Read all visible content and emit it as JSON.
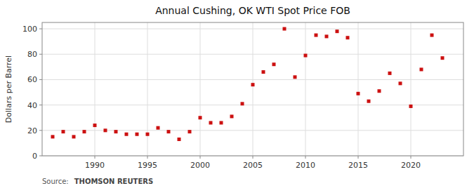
{
  "chart_data": {
    "type": "scatter",
    "title": "Annual Cushing, OK WTI Spot Price FOB",
    "ylabel": "Dollars per Barrel",
    "x": [
      1986,
      1987,
      1988,
      1989,
      1990,
      1991,
      1992,
      1993,
      1994,
      1995,
      1996,
      1997,
      1998,
      1999,
      2000,
      2001,
      2002,
      2003,
      2004,
      2005,
      2006,
      2007,
      2008,
      2009,
      2010,
      2011,
      2012,
      2013,
      2014,
      2015,
      2016,
      2017,
      2018,
      2019,
      2020,
      2021,
      2022,
      2023
    ],
    "values": [
      15,
      19,
      15,
      19,
      24,
      20,
      19,
      17,
      17,
      17,
      22,
      19,
      13,
      19,
      30,
      26,
      26,
      31,
      41,
      56,
      66,
      72,
      100,
      62,
      79,
      95,
      94,
      98,
      93,
      49,
      43,
      51,
      65,
      57,
      39,
      68,
      95,
      77
    ],
    "color": "#CC1111",
    "marker": "square",
    "xlim": [
      1985,
      2025
    ],
    "ylim": [
      0,
      105
    ],
    "xticks": [
      1990,
      1995,
      2000,
      2005,
      2010,
      2015,
      2020
    ],
    "yticks": [
      0,
      20,
      40,
      60,
      80,
      100
    ],
    "grid": true,
    "annotations": [
      "Source:",
      "THOMSON REUTERS"
    ]
  }
}
